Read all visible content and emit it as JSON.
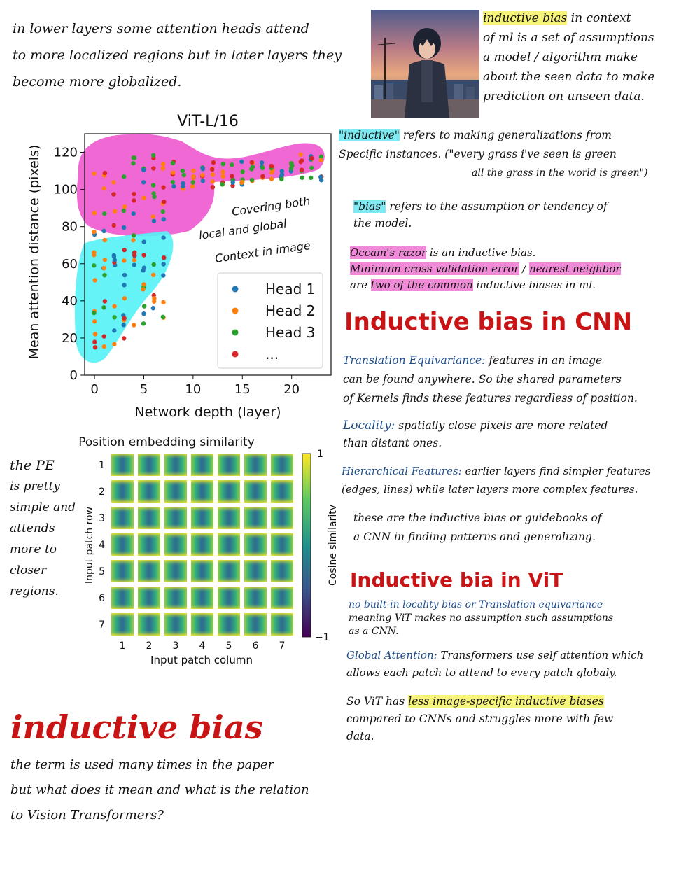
{
  "top_left_note": [
    "in lower  layers some attention heads attend",
    "to more localized regions but in later layers they",
    "become more globalized."
  ],
  "chart_data": [
    {
      "type": "scatter",
      "title": "ViT-L/16",
      "xlabel": "Network depth (layer)",
      "ylabel": "Mean attention distance (pixels)",
      "xlim": [
        -1,
        24
      ],
      "ylim": [
        0,
        130
      ],
      "xticks": [
        "0",
        "5",
        "10",
        "15",
        "20"
      ],
      "yticks": [
        "0",
        "20",
        "40",
        "60",
        "80",
        "100",
        "120"
      ],
      "legend": [
        "Head 1",
        "Head 2",
        "Head 3",
        "..."
      ],
      "legend_position": "lower-right",
      "series_colors": [
        "#1f77b4",
        "#ff7f0e",
        "#2ca02c",
        "#d62728"
      ],
      "annotation": [
        "Covering both",
        "local and global",
        "Context in image"
      ]
    },
    {
      "type": "heatmap",
      "title": "Position embedding similarity",
      "xlabel": "Input patch column",
      "ylabel": "Input patch row",
      "xticks": [
        "1",
        "2",
        "3",
        "4",
        "5",
        "6",
        "7"
      ],
      "yticks": [
        "1",
        "2",
        "3",
        "4",
        "5",
        "6",
        "7"
      ],
      "colorbar_label": "Cosine similarity",
      "colorbar_ticks": [
        "1",
        "−1"
      ],
      "grid_size": [
        7,
        7
      ]
    }
  ],
  "pe_note": [
    "the PE",
    "is pretty",
    "simple and",
    "attends",
    "more to",
    "closer",
    "regions."
  ],
  "main_title": "inductive bias",
  "main_question": [
    "the term is used many times in the paper",
    "but what does it mean and what is the relation",
    "to Vision Transformers?"
  ],
  "definition": {
    "term": "inductive bias",
    "rest_line1": " in context",
    "lines": [
      "of ml is a set of assumptions",
      "a model / algorithm make",
      "about the seen data to make",
      "prediction on unseen data."
    ]
  },
  "inductive_def": {
    "term": "\"inductive\"",
    "rest": " refers to making generalizations from",
    "line2": "Specific instances. (\"every grass i've seen is green",
    "line3": "all the grass in the world is green\")"
  },
  "bias_def": {
    "term": "\"bias\"",
    "rest": " refers to the assumption or tendency of",
    "line2": "the model."
  },
  "occam": {
    "term": "Occam's razor",
    "rest": " is an inductive bias.",
    "line2_a": "Minimum cross validation error",
    "line2_sep": " / ",
    "line2_b": "nearest neighbor",
    "line3_a": "are ",
    "line3_hl": "two of the common",
    "line3_b": " inductive biases in ml."
  },
  "cnn_section": {
    "title": "Inductive bias in CNN",
    "items": [
      {
        "term": "Translation Equivariance:",
        "text": " features in an image",
        "more": [
          "can be found anywhere. So the shared parameters",
          "of Kernels finds these features regardless of position."
        ]
      },
      {
        "term": "Locality:",
        "text": " spatially close pixels are more related",
        "more": [
          "than distant ones."
        ]
      },
      {
        "term": "Hierarchical Features:",
        "text": " earlier layers find simpler features",
        "more": [
          "(edges, lines) while later layers more complex features."
        ]
      }
    ],
    "summary": [
      "these are the inductive bias or guidebooks of",
      "a CNN in finding patterns and generalizing."
    ]
  },
  "vit_section": {
    "title": "Inductive bia in ViT",
    "line1": "no built-in locality bias or Translation equivariance",
    "line2": "meaning ViT makes no assumption such assumptions",
    "line3": "as a CNN.",
    "global_term": "Global Attention:",
    "global_text": " Transformers use self attention which",
    "global_line2": "allows each patch to attend to every patch globaly.",
    "conclusion_a": "So ViT has ",
    "conclusion_hl": "less image-specific inductive biases",
    "conclusion_line2": "compared to CNNs and struggles more with few",
    "conclusion_line3": "data."
  }
}
